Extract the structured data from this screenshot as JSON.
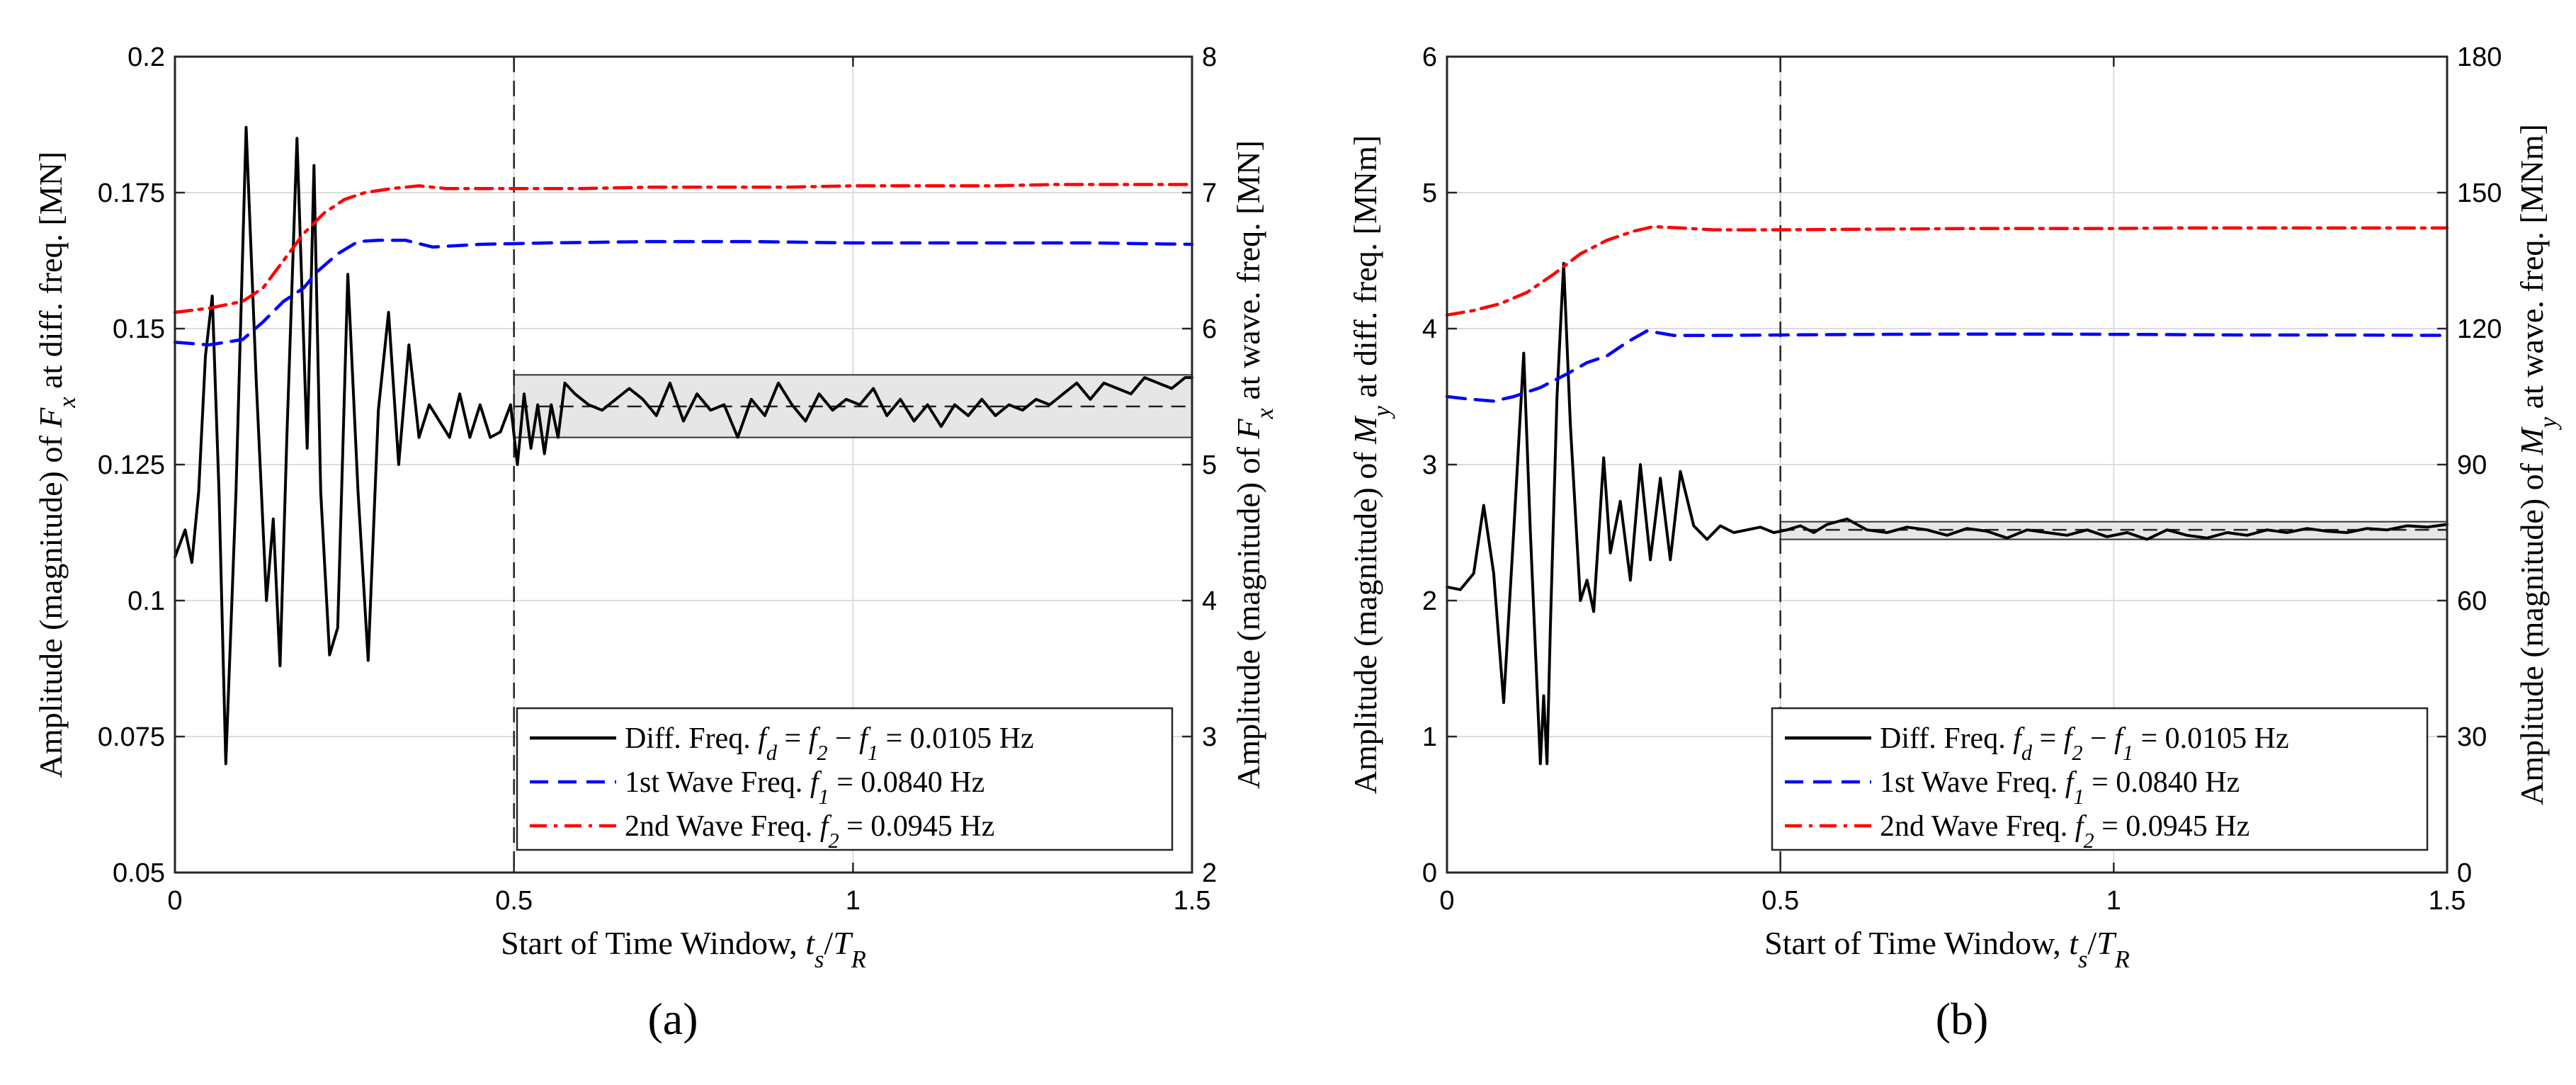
{
  "chart_data": [
    {
      "type": "line",
      "caption": "(a)",
      "xlabel": "Start of Time Window, t_s/T_R",
      "ylabel_left": "Amplitude (magnitude) of F_x at diff. freq. [MN]",
      "ylabel_right": "Amplitude (magnitude) of F_x at wave. freq. [MN]",
      "xlim": [
        0,
        1.5
      ],
      "ylim_left": [
        0.05,
        0.2
      ],
      "ylim_right": [
        2,
        8
      ],
      "xticks": [
        "0",
        "0.5",
        "1",
        "1.5"
      ],
      "yticks_left": [
        "0.05",
        "0.075",
        "0.1",
        "0.125",
        "0.15",
        "0.175",
        "0.2"
      ],
      "yticks_right": [
        "2",
        "3",
        "4",
        "5",
        "6",
        "7",
        "8"
      ],
      "grid": true,
      "legend_position": "lower-right",
      "vline_x": 0.5,
      "band": {
        "x": [
          0.5,
          1.5
        ],
        "y": [
          0.13,
          0.1415
        ],
        "center": 0.1357
      },
      "series": [
        {
          "name": "Diff. Freq. f_d = f_2 − f_1 = 0.0105 Hz",
          "axis": "left",
          "color": "#000000",
          "dash": "solid",
          "x": [
            0.0,
            0.015,
            0.025,
            0.035,
            0.045,
            0.055,
            0.065,
            0.075,
            0.09,
            0.105,
            0.12,
            0.135,
            0.145,
            0.155,
            0.165,
            0.18,
            0.195,
            0.205,
            0.215,
            0.228,
            0.24,
            0.255,
            0.27,
            0.285,
            0.3,
            0.315,
            0.33,
            0.345,
            0.36,
            0.375,
            0.39,
            0.405,
            0.42,
            0.435,
            0.45,
            0.465,
            0.48,
            0.495,
            0.505,
            0.515,
            0.525,
            0.535,
            0.545,
            0.555,
            0.565,
            0.575,
            0.59,
            0.61,
            0.63,
            0.65,
            0.67,
            0.69,
            0.71,
            0.73,
            0.75,
            0.77,
            0.79,
            0.81,
            0.83,
            0.85,
            0.87,
            0.89,
            0.91,
            0.93,
            0.95,
            0.97,
            0.99,
            1.01,
            1.03,
            1.05,
            1.07,
            1.09,
            1.11,
            1.13,
            1.15,
            1.17,
            1.19,
            1.21,
            1.23,
            1.25,
            1.27,
            1.29,
            1.31,
            1.33,
            1.35,
            1.37,
            1.39,
            1.41,
            1.43,
            1.45,
            1.47,
            1.49,
            1.5
          ],
          "y": [
            0.108,
            0.113,
            0.107,
            0.12,
            0.145,
            0.156,
            0.12,
            0.07,
            0.12,
            0.187,
            0.14,
            0.1,
            0.115,
            0.088,
            0.13,
            0.185,
            0.128,
            0.18,
            0.12,
            0.09,
            0.095,
            0.16,
            0.12,
            0.089,
            0.135,
            0.153,
            0.125,
            0.147,
            0.13,
            0.136,
            0.133,
            0.13,
            0.138,
            0.13,
            0.136,
            0.13,
            0.131,
            0.136,
            0.125,
            0.138,
            0.128,
            0.136,
            0.127,
            0.136,
            0.13,
            0.14,
            0.138,
            0.136,
            0.135,
            0.137,
            0.139,
            0.137,
            0.134,
            0.14,
            0.133,
            0.138,
            0.135,
            0.136,
            0.13,
            0.137,
            0.134,
            0.14,
            0.136,
            0.133,
            0.138,
            0.135,
            0.137,
            0.136,
            0.139,
            0.134,
            0.137,
            0.133,
            0.136,
            0.132,
            0.136,
            0.134,
            0.137,
            0.134,
            0.136,
            0.135,
            0.137,
            0.136,
            0.138,
            0.14,
            0.137,
            0.14,
            0.139,
            0.138,
            0.141,
            0.14,
            0.139,
            0.141,
            0.141
          ]
        },
        {
          "name": "1st Wave Freq. f_1 = 0.0840 Hz",
          "axis": "right",
          "color": "#0000ff",
          "dash": "dashed",
          "x": [
            0.0,
            0.05,
            0.1,
            0.13,
            0.16,
            0.19,
            0.21,
            0.24,
            0.27,
            0.3,
            0.34,
            0.38,
            0.45,
            0.55,
            0.7,
            0.85,
            1.0,
            1.2,
            1.35,
            1.5
          ],
          "y": [
            5.9,
            5.88,
            5.92,
            6.05,
            6.2,
            6.3,
            6.42,
            6.55,
            6.64,
            6.65,
            6.65,
            6.6,
            6.62,
            6.63,
            6.64,
            6.64,
            6.63,
            6.63,
            6.63,
            6.62
          ]
        },
        {
          "name": "2nd Wave Freq. f_2 = 0.0945 Hz",
          "axis": "right",
          "color": "#ff0000",
          "dash": "dashdot",
          "x": [
            0.0,
            0.05,
            0.1,
            0.13,
            0.16,
            0.19,
            0.22,
            0.25,
            0.28,
            0.32,
            0.36,
            0.4,
            0.5,
            0.6,
            0.7,
            0.8,
            0.9,
            1.0,
            1.1,
            1.2,
            1.3,
            1.4,
            1.5
          ],
          "y": [
            6.12,
            6.15,
            6.2,
            6.3,
            6.5,
            6.7,
            6.85,
            6.95,
            7.0,
            7.03,
            7.05,
            7.03,
            7.03,
            7.03,
            7.04,
            7.04,
            7.04,
            7.05,
            7.05,
            7.05,
            7.06,
            7.06,
            7.06
          ]
        }
      ]
    },
    {
      "type": "line",
      "caption": "(b)",
      "xlabel": "Start of Time Window, t_s/T_R",
      "ylabel_left": "Amplitude (magnitude) of M_y at diff. freq. [MNm]",
      "ylabel_right": "Amplitude (magnitude) of M_y at wave. freq. [MNm]",
      "xlim": [
        0,
        1.5
      ],
      "ylim_left": [
        0,
        6
      ],
      "ylim_right": [
        0,
        180
      ],
      "xticks": [
        "0",
        "0.5",
        "1",
        "1.5"
      ],
      "yticks_left": [
        "0",
        "1",
        "2",
        "3",
        "4",
        "5",
        "6"
      ],
      "yticks_right": [
        "0",
        "30",
        "60",
        "90",
        "120",
        "150",
        "180"
      ],
      "grid": true,
      "legend_position": "lower-right",
      "vline_x": 0.5,
      "band": {
        "x": [
          0.5,
          1.5
        ],
        "y": [
          2.45,
          2.58
        ],
        "center": 2.52
      },
      "series": [
        {
          "name": "Diff. Freq. f_d = f_2 − f_1 = 0.0105 Hz",
          "axis": "left",
          "color": "#000000",
          "dash": "solid",
          "x": [
            0.0,
            0.02,
            0.04,
            0.055,
            0.07,
            0.085,
            0.1,
            0.115,
            0.125,
            0.14,
            0.145,
            0.15,
            0.155,
            0.165,
            0.175,
            0.185,
            0.2,
            0.21,
            0.22,
            0.235,
            0.245,
            0.26,
            0.275,
            0.29,
            0.305,
            0.32,
            0.335,
            0.35,
            0.37,
            0.39,
            0.41,
            0.43,
            0.45,
            0.47,
            0.49,
            0.51,
            0.53,
            0.55,
            0.57,
            0.6,
            0.63,
            0.66,
            0.69,
            0.72,
            0.75,
            0.78,
            0.81,
            0.84,
            0.87,
            0.9,
            0.93,
            0.96,
            0.99,
            1.02,
            1.05,
            1.08,
            1.11,
            1.14,
            1.17,
            1.2,
            1.23,
            1.26,
            1.29,
            1.32,
            1.35,
            1.38,
            1.41,
            1.44,
            1.47,
            1.5
          ],
          "y": [
            2.1,
            2.08,
            2.2,
            2.7,
            2.2,
            1.25,
            2.5,
            3.82,
            2.5,
            0.8,
            1.3,
            0.8,
            1.8,
            3.5,
            4.48,
            3.3,
            2.0,
            2.15,
            1.92,
            3.05,
            2.35,
            2.73,
            2.15,
            3.0,
            2.3,
            2.9,
            2.3,
            2.95,
            2.55,
            2.45,
            2.55,
            2.5,
            2.52,
            2.54,
            2.5,
            2.52,
            2.55,
            2.5,
            2.56,
            2.6,
            2.52,
            2.5,
            2.54,
            2.52,
            2.48,
            2.53,
            2.51,
            2.46,
            2.52,
            2.5,
            2.48,
            2.52,
            2.47,
            2.5,
            2.45,
            2.52,
            2.48,
            2.46,
            2.5,
            2.48,
            2.52,
            2.5,
            2.53,
            2.51,
            2.5,
            2.53,
            2.52,
            2.55,
            2.54,
            2.56
          ]
        },
        {
          "name": "1st Wave Freq. f_1 = 0.0840 Hz",
          "axis": "right",
          "color": "#0000ff",
          "dash": "dashed",
          "x": [
            0.0,
            0.03,
            0.07,
            0.1,
            0.14,
            0.18,
            0.21,
            0.24,
            0.27,
            0.3,
            0.34,
            0.4,
            0.5,
            0.6,
            0.75,
            0.9,
            1.05,
            1.2,
            1.35,
            1.5
          ],
          "y": [
            105,
            104.5,
            104,
            105,
            107,
            110,
            112.5,
            114,
            117,
            119.5,
            118.5,
            118.5,
            118.6,
            118.7,
            118.8,
            118.8,
            118.7,
            118.6,
            118.6,
            118.5
          ]
        },
        {
          "name": "2nd Wave Freq. f_2 = 0.0945 Hz",
          "axis": "right",
          "color": "#ff0000",
          "dash": "dashdot",
          "x": [
            0.0,
            0.04,
            0.08,
            0.12,
            0.16,
            0.2,
            0.24,
            0.28,
            0.31,
            0.35,
            0.4,
            0.5,
            0.6,
            0.7,
            0.8,
            0.9,
            1.0,
            1.1,
            1.2,
            1.3,
            1.4,
            1.5
          ],
          "y": [
            123,
            124,
            125.5,
            128,
            132,
            136.5,
            139.5,
            141.5,
            142.5,
            142.2,
            141.8,
            141.8,
            141.9,
            142.0,
            142.1,
            142.1,
            142.1,
            142.2,
            142.2,
            142.2,
            142.2,
            142.2
          ]
        }
      ]
    }
  ]
}
